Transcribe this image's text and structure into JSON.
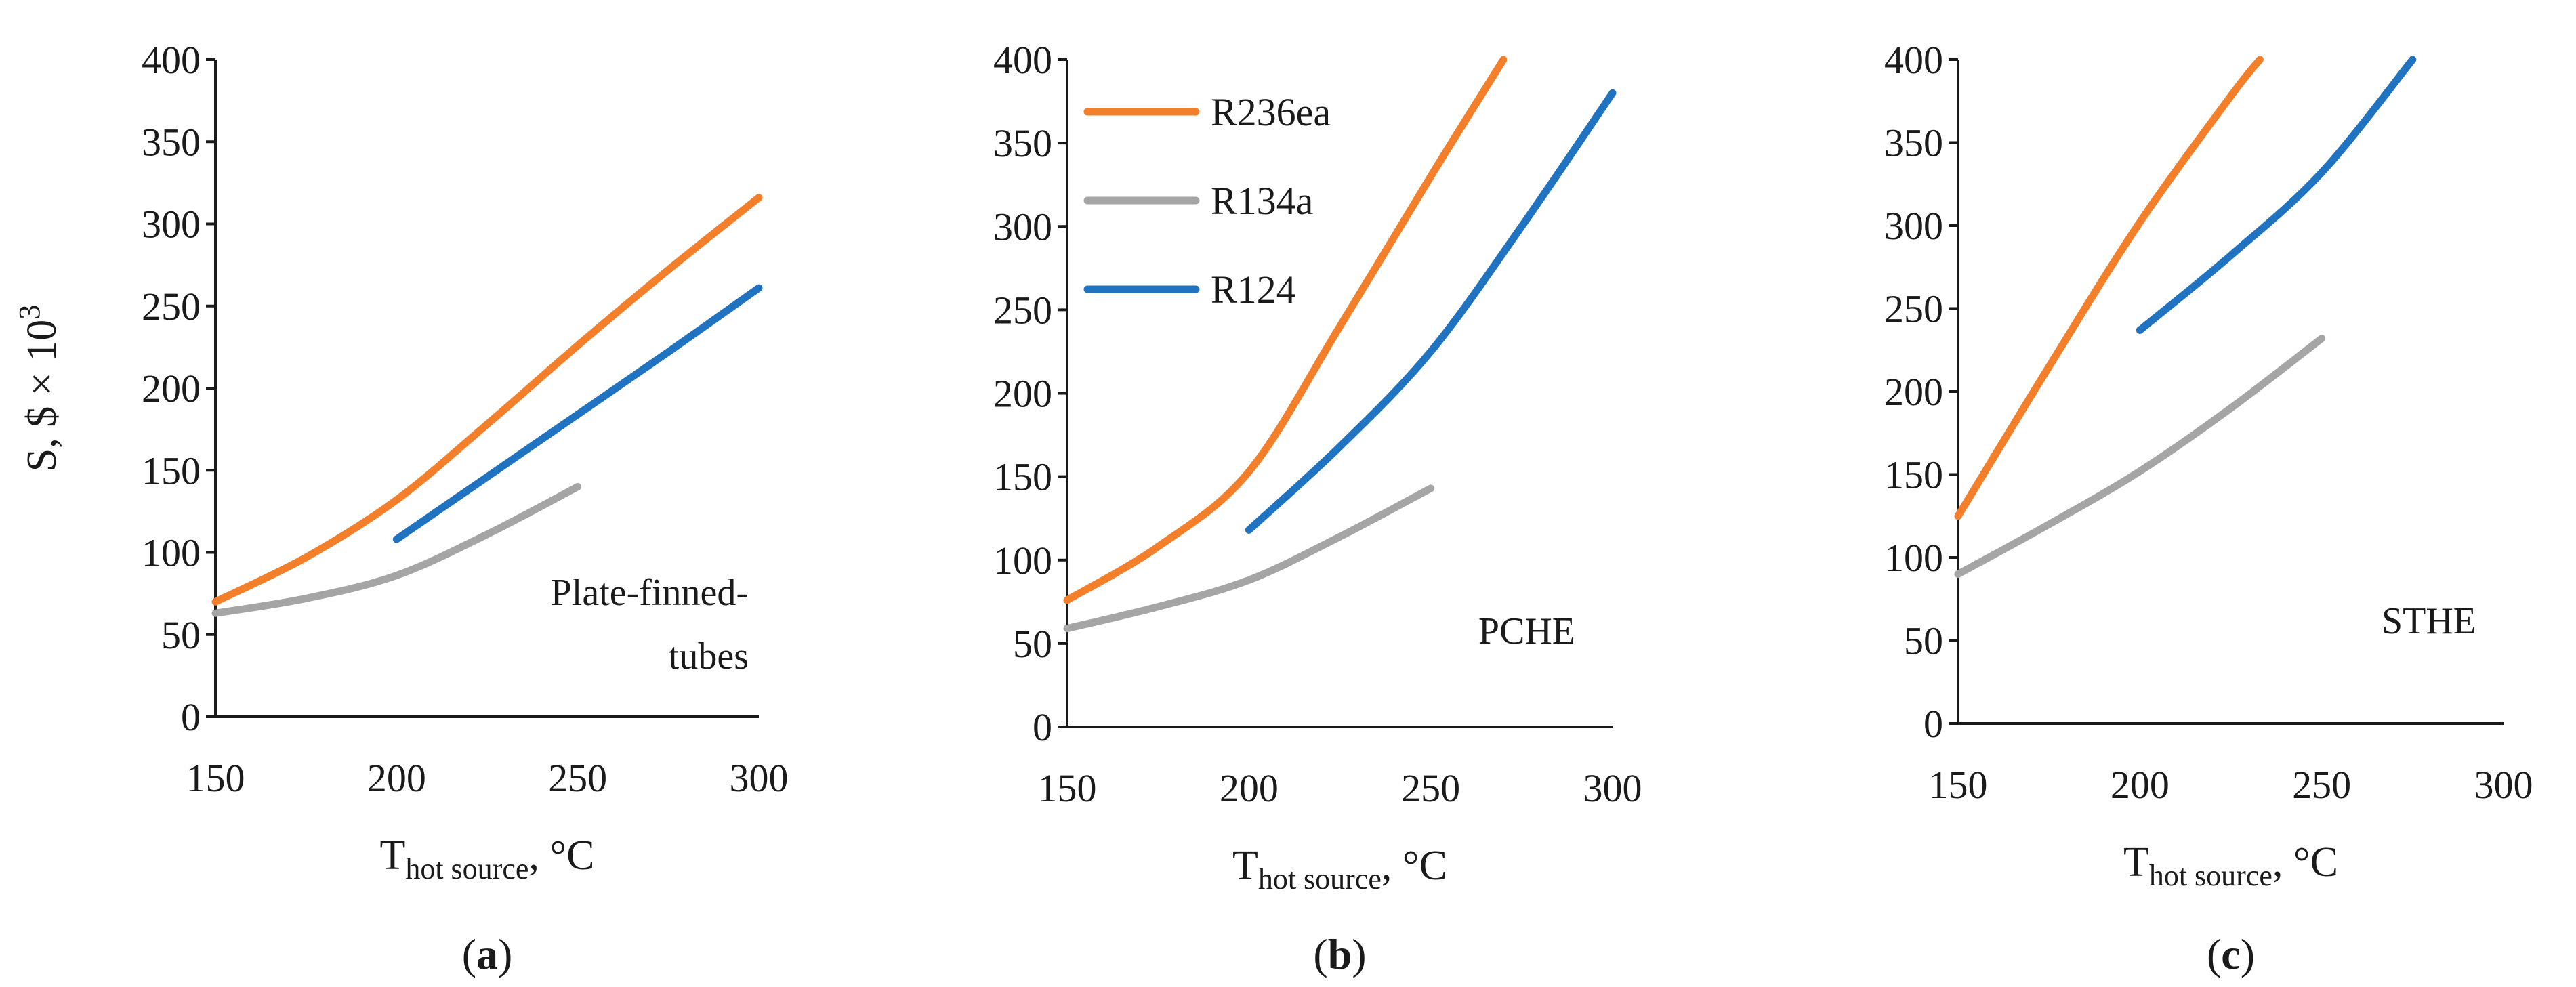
{
  "chart_data": [
    {
      "type": "line",
      "panel_label": "a",
      "annotation": [
        "Plate-finned-",
        "tubes"
      ],
      "ylabel": "S, $ × 10",
      "ylabel_exponent": "3",
      "xlabel_main": "T",
      "xlabel_sub": "hot source",
      "xlabel_unit": ", °C",
      "xlim": [
        150,
        300
      ],
      "ylim": [
        0,
        400
      ],
      "xticks": [
        "150",
        "200",
        "250",
        "300"
      ],
      "yticks": [
        "0",
        "50",
        "100",
        "150",
        "200",
        "250",
        "300",
        "350",
        "400"
      ],
      "series": [
        {
          "name": "R236ea",
          "color": "#f47f2b",
          "x": [
            150,
            175,
            200,
            225,
            250,
            275,
            300
          ],
          "y": [
            70,
            97,
            132,
            178,
            226,
            272,
            316
          ]
        },
        {
          "name": "R134a",
          "color": "#a5a5a5",
          "x": [
            150,
            175,
            200,
            225,
            250
          ],
          "y": [
            63,
            72,
            86,
            111,
            140
          ]
        },
        {
          "name": "R124",
          "color": "#1f73c0",
          "x": [
            200,
            225,
            250,
            275,
            300
          ],
          "y": [
            108,
            146,
            184,
            222,
            261
          ]
        }
      ]
    },
    {
      "type": "line",
      "panel_label": "b",
      "annotation": [
        "PCHE"
      ],
      "xlabel_main": "T",
      "xlabel_sub": "hot source",
      "xlabel_unit": ", °C",
      "xlim": [
        150,
        300
      ],
      "ylim": [
        0,
        400
      ],
      "xticks": [
        "150",
        "200",
        "250",
        "300"
      ],
      "yticks": [
        "0",
        "50",
        "100",
        "150",
        "200",
        "250",
        "300",
        "350",
        "400"
      ],
      "legend": {
        "position": "top-left",
        "entries": [
          "R236ea",
          "R134a",
          "R124"
        ]
      },
      "series": [
        {
          "name": "R236ea",
          "color": "#f47f2b",
          "x": [
            150,
            175,
            200,
            225,
            250,
            270
          ],
          "y": [
            76,
            108,
            153,
            240,
            330,
            400
          ]
        },
        {
          "name": "R134a",
          "color": "#a5a5a5",
          "x": [
            150,
            175,
            200,
            225,
            250
          ],
          "y": [
            59,
            72,
            88,
            114,
            143
          ]
        },
        {
          "name": "R124",
          "color": "#1f73c0",
          "x": [
            200,
            225,
            250,
            275,
            300
          ],
          "y": [
            118,
            168,
            225,
            300,
            380
          ]
        }
      ]
    },
    {
      "type": "line",
      "panel_label": "c",
      "annotation": [
        "STHE"
      ],
      "xlabel_main": "T",
      "xlabel_sub": "hot source",
      "xlabel_unit": ", °C",
      "xlim": [
        150,
        300
      ],
      "ylim": [
        0,
        400
      ],
      "xticks": [
        "150",
        "200",
        "250",
        "300"
      ],
      "yticks": [
        "0",
        "50",
        "100",
        "150",
        "200",
        "250",
        "300",
        "350",
        "400"
      ],
      "series": [
        {
          "name": "R236ea",
          "color": "#f47f2b",
          "x": [
            150,
            175,
            200,
            225,
            233
          ],
          "y": [
            125,
            215,
            302,
            378,
            400
          ]
        },
        {
          "name": "R134a",
          "color": "#a5a5a5",
          "x": [
            150,
            175,
            200,
            225,
            250
          ],
          "y": [
            90,
            120,
            152,
            190,
            232
          ]
        },
        {
          "name": "R124",
          "color": "#1f73c0",
          "x": [
            200,
            225,
            250,
            275
          ],
          "y": [
            237,
            282,
            332,
            400
          ]
        }
      ]
    }
  ]
}
